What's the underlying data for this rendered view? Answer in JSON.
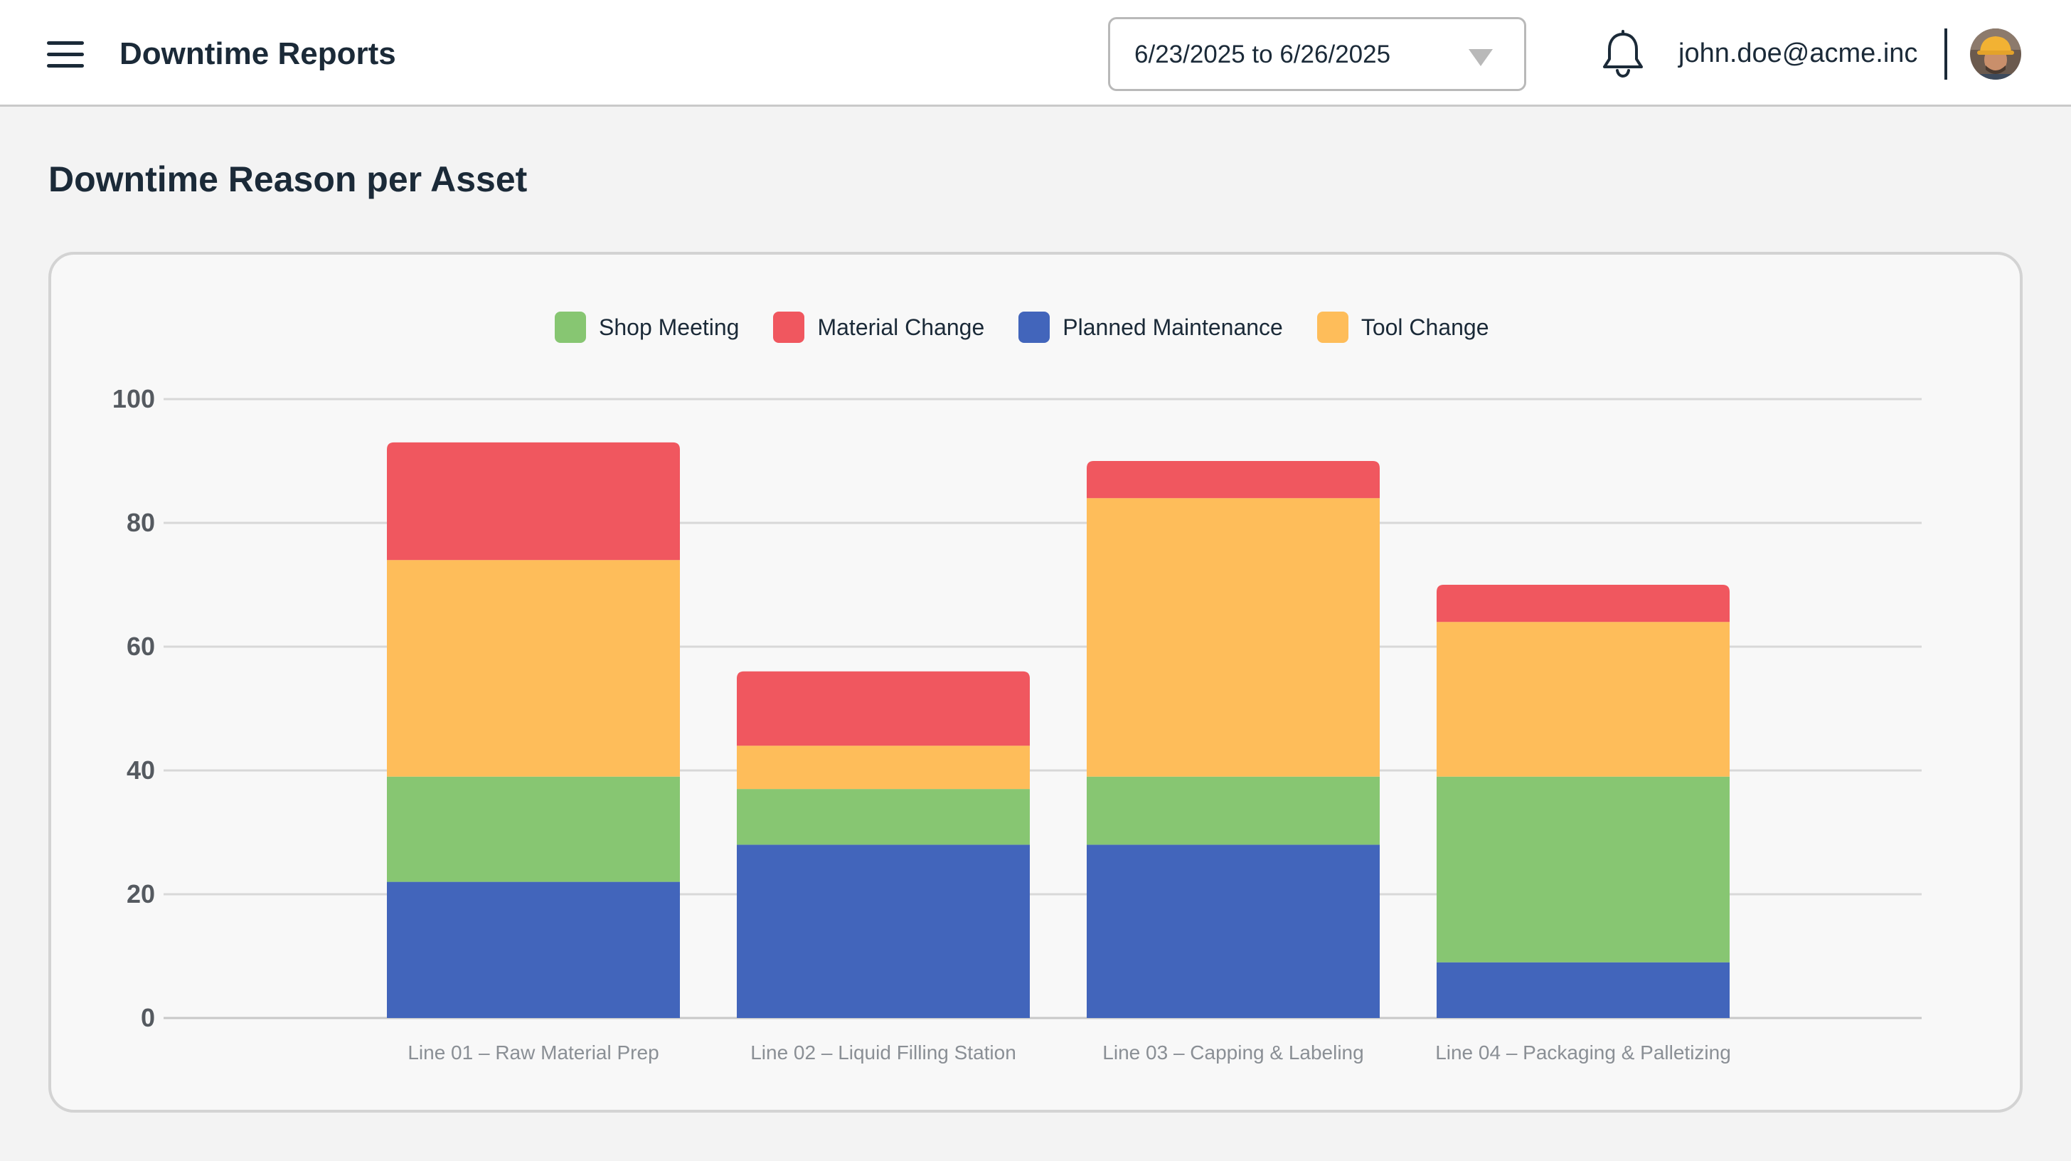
{
  "header": {
    "title": "Downtime Reports",
    "date_range": "6/23/2025 to 6/26/2025",
    "user_email": "john.doe@acme.inc",
    "icons": {
      "menu": "hamburger-menu-icon",
      "caret": "caret-down-icon",
      "notifications": "bell-icon"
    }
  },
  "page": {
    "title": "Downtime Reason per Asset"
  },
  "colors": {
    "shop_meeting": "#87c672",
    "material_change": "#f0575f",
    "planned_maintenance": "#4265bb",
    "tool_change": "#febd5a",
    "grid": "#d8d8d8"
  },
  "chart_data": {
    "type": "bar",
    "stacked": true,
    "title": "",
    "xlabel": "",
    "ylabel": "",
    "ylim": [
      0,
      100
    ],
    "yticks": [
      0,
      20,
      40,
      60,
      80,
      100
    ],
    "grid": true,
    "legend_position": "top-center",
    "legend": [
      "Shop Meeting",
      "Material Change",
      "Planned Maintenance",
      "Tool Change"
    ],
    "categories": [
      "Line 01 – Raw Material Prep",
      "Line 02 – Liquid Filling Station",
      "Line 03 – Capping & Labeling",
      "Line 04 – Packaging & Palletizing"
    ],
    "stack_order": [
      "Planned Maintenance",
      "Shop Meeting",
      "Tool Change",
      "Material Change"
    ],
    "series": [
      {
        "name": "Planned Maintenance",
        "color": "#4265bb",
        "values": [
          22,
          28,
          28,
          9
        ]
      },
      {
        "name": "Shop Meeting",
        "color": "#87c672",
        "values": [
          17,
          9,
          11,
          30
        ]
      },
      {
        "name": "Tool Change",
        "color": "#febd5a",
        "values": [
          35,
          7,
          45,
          25
        ]
      },
      {
        "name": "Material Change",
        "color": "#f0575f",
        "values": [
          19,
          12,
          6,
          6
        ]
      }
    ]
  }
}
